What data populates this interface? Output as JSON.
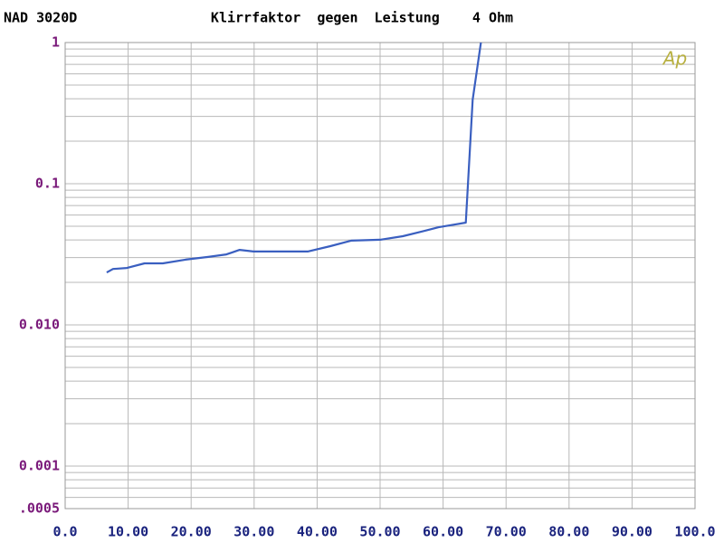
{
  "chart_data": {
    "type": "line",
    "title": "Klirrfaktor  gegen  Leistung    4 Ohm",
    "subtitle": "NAD 3020D",
    "logo": "Ap",
    "x": [
      6.6,
      7.6,
      9.8,
      12.6,
      15.5,
      19.1,
      22.7,
      25.6,
      27.7,
      29.9,
      38.5,
      42.1,
      45.4,
      50.0,
      53.6,
      56.5,
      59.3,
      63.6,
      64.7,
      66.0
    ],
    "values": [
      0.0235,
      0.0249,
      0.0253,
      0.0273,
      0.0273,
      0.029,
      0.0303,
      0.0316,
      0.034,
      0.0331,
      0.0331,
      0.0361,
      0.0395,
      0.0401,
      0.0425,
      0.0457,
      0.0492,
      0.053,
      0.394,
      1.0
    ],
    "color": "#3a5fc0",
    "xlim": [
      0,
      100
    ],
    "xticks": [
      {
        "value": 0,
        "label": "0.0"
      },
      {
        "value": 10,
        "label": "10.00"
      },
      {
        "value": 20,
        "label": "20.00"
      },
      {
        "value": 30,
        "label": "30.00"
      },
      {
        "value": 40,
        "label": "40.00"
      },
      {
        "value": 50,
        "label": "50.00"
      },
      {
        "value": 60,
        "label": "60.00"
      },
      {
        "value": 70,
        "label": "70.00"
      },
      {
        "value": 80,
        "label": "80.00"
      },
      {
        "value": 90,
        "label": "90.00"
      },
      {
        "value": 100,
        "label": "100.0"
      }
    ],
    "ylim": [
      0.0005,
      1
    ],
    "yticks": [
      {
        "value": 0.0005,
        "label": ".0005"
      },
      0.001,
      {
        "value": 0.01,
        "label": "0.010"
      },
      0.1,
      1
    ],
    "log_y": true,
    "grid": true
  }
}
